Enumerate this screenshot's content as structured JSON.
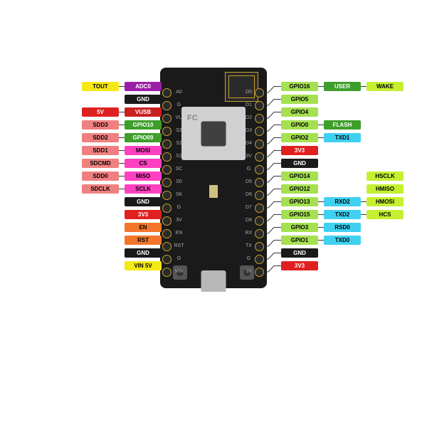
{
  "colors": {
    "yellow": "#f5e915",
    "purple": "#9b1ea8",
    "red": "#e02020",
    "salmon": "#f08080",
    "green": "#3d9e2a",
    "yellowgreen": "#a5e050",
    "pink": "#ff40c0",
    "orange": "#f2752a",
    "darkred": "#c92020",
    "black": "#1a1a1a",
    "lime": "#c5f030",
    "cyan": "#40d0f0",
    "white": "#ffffff"
  },
  "textcolors": {
    "yellow": "#000",
    "purple": "#fff",
    "red": "#fff",
    "salmon": "#000",
    "green": "#fff",
    "yellowgreen": "#000",
    "pink": "#000",
    "orange": "#000",
    "darkred": "#fff",
    "black": "#fff",
    "lime": "#000",
    "cyan": "#000"
  },
  "pinLabelsLeft": [
    "A0",
    "G",
    "VU",
    "S3",
    "S2",
    "S1",
    "SC",
    "S0",
    "SK",
    "G",
    "3V",
    "EN",
    "RST",
    "G",
    "VIN"
  ],
  "pinLabelsRight": [
    "D0",
    "D1",
    "D2",
    "D3",
    "D4",
    "3V",
    "G",
    "D5",
    "D6",
    "D7",
    "D8",
    "RX",
    "TX",
    "G",
    "3V"
  ],
  "leftRows": [
    {
      "pin": 0,
      "labels": [
        {
          "t": "TOUT",
          "c": "yellow"
        },
        {
          "t": "ADC0",
          "c": "purple"
        }
      ]
    },
    {
      "pin": 1,
      "labels": [
        {
          "t": "GND",
          "c": "black"
        }
      ]
    },
    {
      "pin": 2,
      "labels": [
        {
          "t": "5V",
          "c": "red"
        },
        {
          "t": "VUSB",
          "c": "darkred"
        }
      ]
    },
    {
      "pin": 3,
      "labels": [
        {
          "t": "SDD3",
          "c": "salmon"
        },
        {
          "t": "GPIO10",
          "c": "green"
        }
      ]
    },
    {
      "pin": 4,
      "labels": [
        {
          "t": "SDD2",
          "c": "salmon"
        },
        {
          "t": "GPIO09",
          "c": "green"
        }
      ]
    },
    {
      "pin": 5,
      "labels": [
        {
          "t": "SDD1",
          "c": "salmon"
        },
        {
          "t": "MOSI",
          "c": "pink"
        }
      ]
    },
    {
      "pin": 6,
      "labels": [
        {
          "t": "SDCMD",
          "c": "salmon"
        },
        {
          "t": "CS",
          "c": "pink"
        }
      ]
    },
    {
      "pin": 7,
      "labels": [
        {
          "t": "SDD0",
          "c": "salmon"
        },
        {
          "t": "MISO",
          "c": "pink"
        }
      ]
    },
    {
      "pin": 8,
      "labels": [
        {
          "t": "SDCLK",
          "c": "salmon"
        },
        {
          "t": "SCLK",
          "c": "pink"
        }
      ]
    },
    {
      "pin": 9,
      "labels": [
        {
          "t": "GND",
          "c": "black"
        }
      ]
    },
    {
      "pin": 10,
      "labels": [
        {
          "t": "3V3",
          "c": "red"
        }
      ]
    },
    {
      "pin": 11,
      "labels": [
        {
          "t": "EN",
          "c": "orange"
        }
      ]
    },
    {
      "pin": 12,
      "labels": [
        {
          "t": "RST",
          "c": "orange"
        }
      ]
    },
    {
      "pin": 13,
      "labels": [
        {
          "t": "GND",
          "c": "black"
        }
      ]
    },
    {
      "pin": 14,
      "labels": [
        {
          "t": "VIN 5V",
          "c": "yellow"
        }
      ]
    }
  ],
  "rightRows": [
    {
      "pin": 0,
      "labels": [
        {
          "t": "GPIO16",
          "c": "yellowgreen"
        },
        {
          "t": "USER",
          "c": "green"
        },
        {
          "t": "WAKE",
          "c": "lime"
        }
      ]
    },
    {
      "pin": 1,
      "labels": [
        {
          "t": "GPIO5",
          "c": "yellowgreen"
        }
      ]
    },
    {
      "pin": 2,
      "labels": [
        {
          "t": "GPIO4",
          "c": "yellowgreen"
        }
      ]
    },
    {
      "pin": 3,
      "labels": [
        {
          "t": "GPIO0",
          "c": "yellowgreen"
        },
        {
          "t": "FLASH",
          "c": "green"
        }
      ]
    },
    {
      "pin": 4,
      "labels": [
        {
          "t": "GPIO2",
          "c": "yellowgreen"
        },
        {
          "t": "TXD1",
          "c": "cyan"
        }
      ]
    },
    {
      "pin": 5,
      "labels": [
        {
          "t": "3V3",
          "c": "red"
        }
      ]
    },
    {
      "pin": 6,
      "labels": [
        {
          "t": "GND",
          "c": "black"
        }
      ]
    },
    {
      "pin": 7,
      "labels": [
        {
          "t": "GPIO14",
          "c": "yellowgreen"
        },
        null,
        {
          "t": "HSCLK",
          "c": "lime"
        }
      ]
    },
    {
      "pin": 8,
      "labels": [
        {
          "t": "GPIO12",
          "c": "yellowgreen"
        },
        null,
        {
          "t": "HMISO",
          "c": "lime"
        }
      ]
    },
    {
      "pin": 9,
      "labels": [
        {
          "t": "GPIO13",
          "c": "yellowgreen"
        },
        {
          "t": "RXD2",
          "c": "cyan"
        },
        {
          "t": "HMOSI",
          "c": "lime"
        }
      ]
    },
    {
      "pin": 10,
      "labels": [
        {
          "t": "GPIO15",
          "c": "yellowgreen"
        },
        {
          "t": "TXD2",
          "c": "cyan"
        },
        {
          "t": "HCS",
          "c": "lime"
        }
      ]
    },
    {
      "pin": 11,
      "labels": [
        {
          "t": "GPIO3",
          "c": "yellowgreen"
        },
        {
          "t": "RSD0",
          "c": "cyan"
        }
      ]
    },
    {
      "pin": 12,
      "labels": [
        {
          "t": "GPIO1",
          "c": "yellowgreen"
        },
        {
          "t": "TXD0",
          "c": "cyan"
        }
      ]
    },
    {
      "pin": 13,
      "labels": [
        {
          "t": "GND",
          "c": "black"
        }
      ]
    },
    {
      "pin": 14,
      "labels": [
        {
          "t": "3V3",
          "c": "red"
        }
      ]
    }
  ],
  "layout": {
    "pinTop": 130,
    "pinStep": 18,
    "leftPinX": 234,
    "rightPinX": 366,
    "leftColXs": [
      55,
      115,
      175
    ],
    "rightColXs": [
      395,
      455,
      515
    ],
    "labelW": 52,
    "labelH": 15,
    "rowStep": 18,
    "leftStartY": 115,
    "rightStartY": 115
  }
}
